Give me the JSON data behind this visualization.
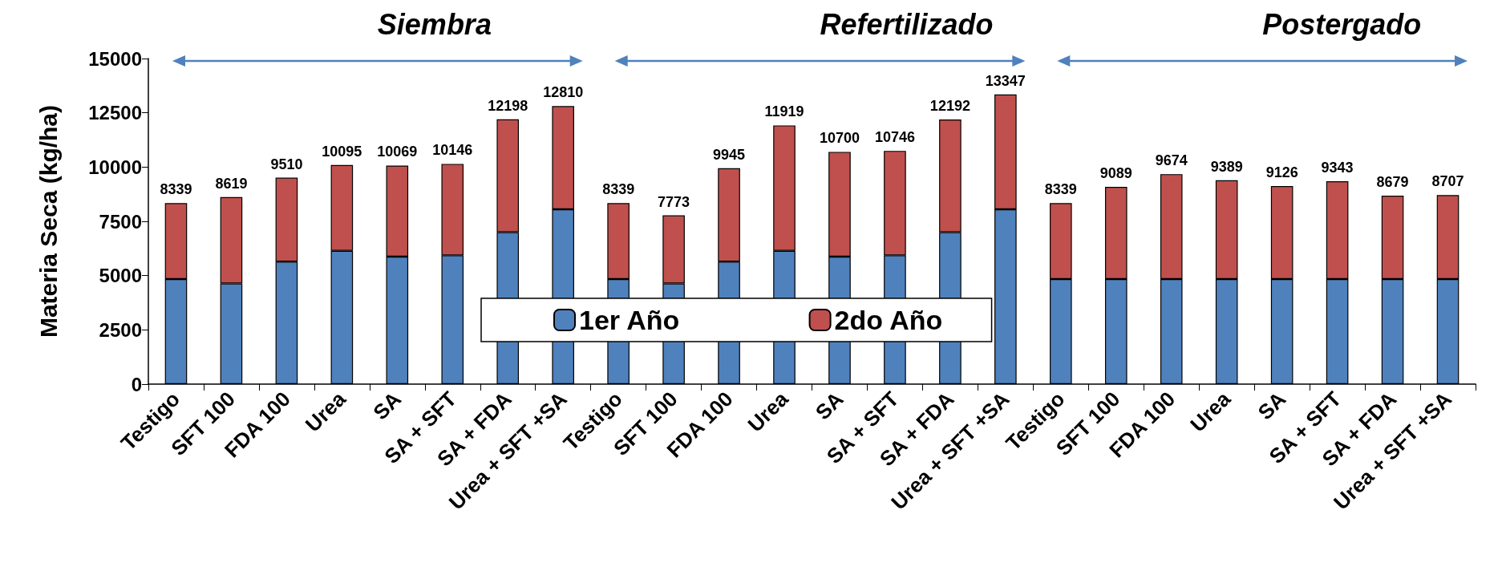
{
  "chart_data": {
    "type": "bar",
    "stacked": true,
    "ylabel": "Materia Seca (kg/ha)",
    "categories": [
      "Testigo",
      "SFT 100",
      "FDA 100",
      "Urea",
      "SA",
      "SA + SFT",
      "SA + FDA",
      "Urea + SFT +SA",
      "Testigo",
      "SFT 100",
      "FDA 100",
      "Urea",
      "SA",
      "SA + SFT",
      "SA + FDA",
      "Urea + SFT +SA",
      "Testigo",
      "SFT 100",
      "FDA 100",
      "Urea",
      "SA",
      "SA + SFT",
      "SA + FDA",
      "Urea + SFT +SA"
    ],
    "series": [
      {
        "name": "1er Año",
        "color": "#4f81bd",
        "values": [
          4840,
          4635,
          5643,
          6140,
          5877,
          5936,
          7003,
          8056,
          4840,
          4635,
          5643,
          6140,
          5877,
          5936,
          7003,
          8056,
          4840,
          4840,
          4840,
          4840,
          4840,
          4840,
          4840,
          4840
        ]
      },
      {
        "name": "2do Año",
        "color": "#c0504d",
        "values": [
          3499,
          3984,
          3867,
          3955,
          4192,
          4210,
          5195,
          4754,
          3499,
          3138,
          4302,
          5779,
          4823,
          4810,
          5189,
          5291,
          3499,
          4249,
          4834,
          4549,
          4286,
          4503,
          3839,
          3867
        ]
      }
    ],
    "totals": [
      "8339",
      "8619",
      "9510",
      "10095",
      "10069",
      "10146",
      "12198",
      "12810",
      "8339",
      "7773",
      "9945",
      "11919",
      "10700",
      "10746",
      "12192",
      "13347",
      "8339",
      "9089",
      "9674",
      "9389",
      "9126",
      "9343",
      "8679",
      "8707"
    ],
    "annotations": [
      "Siembra",
      "Refertilizado",
      "Postergado"
    ],
    "ylim": [
      0,
      15000
    ],
    "yticks": [
      0,
      2500,
      5000,
      7500,
      10000,
      12500,
      15000
    ],
    "grid": false,
    "legend": "bottom"
  }
}
